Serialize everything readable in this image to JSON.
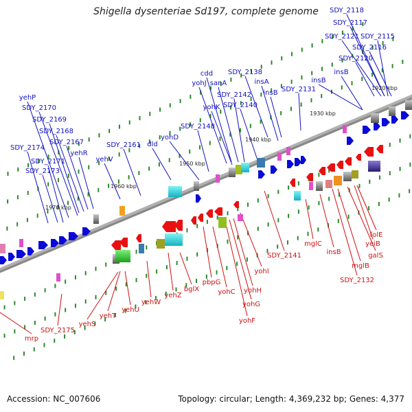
{
  "title": "Shigella dysenteriae Sd197, complete genome",
  "footer": {
    "accession": "Accession: NC_007606",
    "summary": "Topology: circular; Length: 4,369,232 bp; Genes: 4,377"
  },
  "colors": {
    "top_strand_label": "#1010c0",
    "bottom_strand_label": "#d01010",
    "backbone": "#888888",
    "tick": "#2a8a2a"
  },
  "scale_ticks": [
    "1920 kbp",
    "1930 kbp",
    "1940 kbp",
    "1950 kbp",
    "1960 kbp",
    "1970 kbp"
  ],
  "top_labels": [
    "SDY_2118",
    "SDY_2117",
    "SDY_2121",
    "SDY_2115",
    "SDY_2116",
    "SDY_2120",
    "insB",
    "insB",
    "SDY_2131",
    "SDY_2138",
    "insA",
    "insB",
    "cdd",
    "yohJ",
    "sanA",
    "SDY_2142",
    "yohK",
    "SDY_2140",
    "SDY_2148",
    "yohD",
    "dld",
    "SDY_2161",
    "yehV",
    "yehP",
    "SDY_2170",
    "SDY_2169",
    "SDY_2168",
    "SDY_2167",
    "yehR",
    "SDY_2174",
    "SDY_2171",
    "SDY_2173"
  ],
  "bottom_labels": [
    "folE",
    "yeiB",
    "galS",
    "mglB",
    "SDY_2132",
    "mglC",
    "insB",
    "SDY_2141",
    "yohI",
    "yohH",
    "yohG",
    "yohF",
    "yohC",
    "pbpG",
    "bglX",
    "yehZ",
    "yehW",
    "yehU",
    "yehT",
    "yehS",
    "SDY_2175",
    "mrp"
  ]
}
